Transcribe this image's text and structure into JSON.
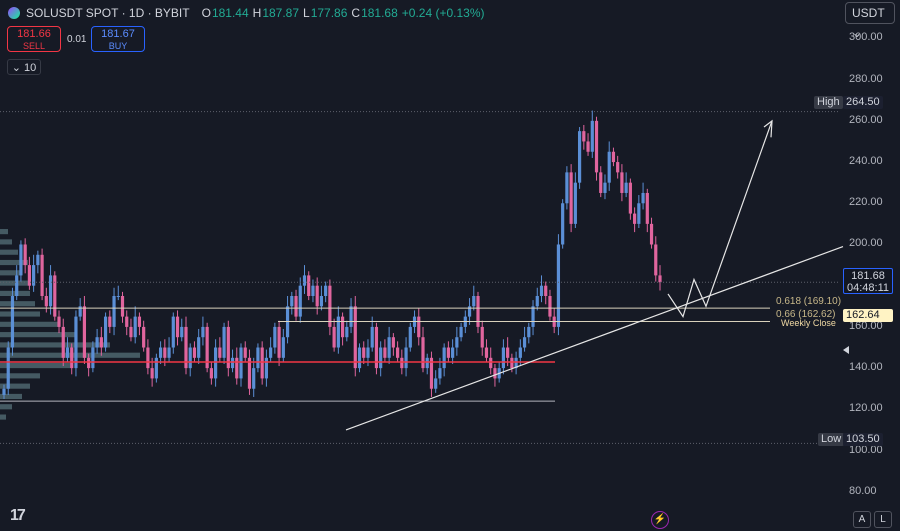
{
  "header": {
    "symbol": "SOLUSDT SPOT · 1D · BYBIT",
    "o_key": "O",
    "o_val": "181.44",
    "h_key": "H",
    "h_val": "187.87",
    "l_key": "L",
    "l_val": "177.86",
    "c_key": "C",
    "c_val": "181.68",
    "change": "+0.24 (+0.13%)"
  },
  "trade": {
    "sell_price": "181.66",
    "sell_label": "SELL",
    "spread": "0.01",
    "buy_price": "181.67",
    "buy_label": "BUY"
  },
  "indicator": {
    "toggle": "⌄",
    "value": "10"
  },
  "currency_button": "USDT ⌄",
  "bottom": {
    "tv_logo": "17",
    "bolt": "⚡",
    "auto_label": "A",
    "log_label": "L"
  },
  "colors": {
    "up": "#5b8fd6",
    "down": "#e0659e",
    "red_line": "#f23645",
    "profile": "#7fa8b0",
    "background": "#161a25"
  },
  "chart_data": {
    "type": "candlestick",
    "symbol": "SOLUSDT",
    "interval": "1D",
    "exchange": "BYBIT",
    "y_axis": {
      "ticks": [
        80,
        100,
        120,
        140,
        160,
        180,
        200,
        220,
        240,
        260,
        280,
        300
      ],
      "tick_labels": [
        "80.00",
        "100.00",
        "120.00",
        "140.00",
        "160.00",
        "180.00",
        "200.00",
        "220.00",
        "240.00",
        "260.00",
        "280.00",
        "300.00"
      ],
      "range": [
        76,
        307
      ]
    },
    "closes": [
      130,
      150,
      175,
      185,
      200,
      190,
      180,
      190,
      195,
      175,
      170,
      185,
      165,
      160,
      145,
      150,
      140,
      165,
      170,
      145,
      140,
      150,
      155,
      150,
      165,
      160,
      175,
      175,
      165,
      160,
      155,
      165,
      160,
      150,
      140,
      135,
      145,
      150,
      145,
      150,
      165,
      155,
      160,
      140,
      150,
      145,
      155,
      160,
      140,
      135,
      150,
      145,
      160,
      140,
      145,
      135,
      150,
      145,
      130,
      140,
      150,
      135,
      145,
      150,
      160,
      145,
      155,
      170,
      175,
      165,
      180,
      185,
      175,
      180,
      170,
      175,
      180,
      160,
      150,
      165,
      155,
      160,
      170,
      140,
      150,
      145,
      150,
      160,
      140,
      150,
      145,
      155,
      150,
      145,
      140,
      150,
      160,
      165,
      155,
      140,
      145,
      130,
      135,
      140,
      150,
      145,
      150,
      155,
      160,
      165,
      170,
      175,
      160,
      150,
      145,
      140,
      135,
      140,
      150,
      145,
      140,
      145,
      150,
      155,
      160,
      170,
      175,
      180,
      175,
      165,
      160,
      200,
      220,
      235,
      210,
      230,
      255,
      250,
      245,
      260,
      235,
      225,
      230,
      245,
      240,
      235,
      225,
      230,
      215,
      210,
      220,
      225,
      210,
      200,
      185,
      181.68
    ],
    "levels": {
      "high": {
        "label": "High",
        "value": "264.50"
      },
      "low": {
        "label": "Low",
        "value": "103.50"
      },
      "current": {
        "price": "181.68",
        "countdown": "04:48:11"
      },
      "weekly_close": {
        "label": "Weekly Close",
        "value": "162.64"
      },
      "fib_0618": "0.618 (169.10)",
      "fib_066": "0.66 (162.62)"
    }
  }
}
